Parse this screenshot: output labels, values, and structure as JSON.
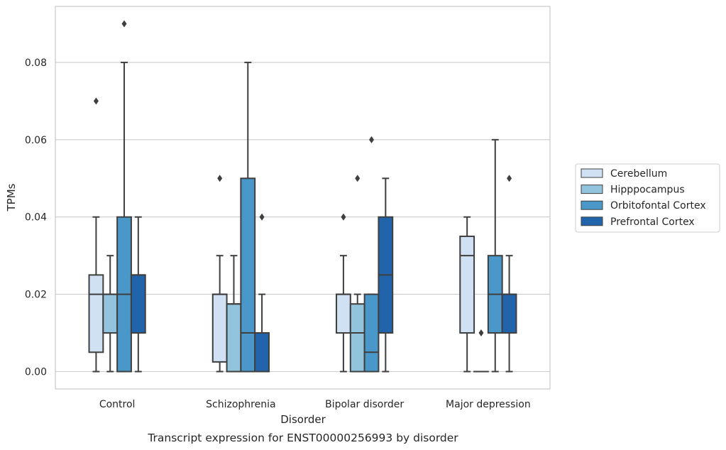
{
  "caption": "Transcript expression for ENST00000256993 by disorder",
  "chart_data": {
    "type": "box",
    "xlabel": "Disorder",
    "ylabel": "TPMs",
    "ylim": [
      -0.0045,
      0.0945
    ],
    "yticks": [
      0.0,
      0.02,
      0.04,
      0.06,
      0.08
    ],
    "ytick_labels": [
      "0.00",
      "0.02",
      "0.04",
      "0.06",
      "0.08"
    ],
    "grid": "horizontal",
    "legend_position": "right",
    "categories": [
      "Control",
      "Schizophrenia",
      "Bipolar disorder",
      "Major depression"
    ],
    "series": [
      {
        "name": "Cerebellum",
        "color": "#cfe1f2",
        "boxes": [
          {
            "whislo": 0.0,
            "q1": 0.005,
            "med": 0.02,
            "q3": 0.025,
            "whishi": 0.04,
            "fliers": [
              0.07
            ]
          },
          {
            "whislo": 0.0,
            "q1": 0.0025,
            "med": 0.02,
            "q3": 0.02,
            "whishi": 0.03,
            "fliers": [
              0.05
            ]
          },
          {
            "whislo": 0.0,
            "q1": 0.01,
            "med": 0.02,
            "q3": 0.02,
            "whishi": 0.03,
            "fliers": [
              0.04
            ]
          },
          {
            "whislo": 0.0,
            "q1": 0.01,
            "med": 0.03,
            "q3": 0.035,
            "whishi": 0.04,
            "fliers": []
          }
        ]
      },
      {
        "name": "Hipppocampus",
        "color": "#93c4de",
        "boxes": [
          {
            "whislo": 0.0,
            "q1": 0.01,
            "med": 0.02,
            "q3": 0.02,
            "whishi": 0.03,
            "fliers": []
          },
          {
            "whislo": 0.0,
            "q1": 0.0,
            "med": 0.0175,
            "q3": 0.0175,
            "whishi": 0.03,
            "fliers": []
          },
          {
            "whislo": 0.0,
            "q1": 0.0,
            "med": 0.01,
            "q3": 0.0175,
            "whishi": 0.02,
            "fliers": [
              0.05
            ]
          },
          {
            "whislo": 0.0,
            "q1": 0.0,
            "med": 0.0,
            "q3": 0.0,
            "whishi": 0.0,
            "fliers": [
              0.01
            ]
          }
        ]
      },
      {
        "name": "Orbitofontal Cortex",
        "color": "#4a98c9",
        "boxes": [
          {
            "whislo": 0.0,
            "q1": 0.0,
            "med": 0.02,
            "q3": 0.04,
            "whishi": 0.08,
            "fliers": [
              0.09
            ]
          },
          {
            "whislo": 0.0,
            "q1": 0.0,
            "med": 0.01,
            "q3": 0.05,
            "whishi": 0.08,
            "fliers": []
          },
          {
            "whislo": 0.0,
            "q1": 0.0,
            "med": 0.005,
            "q3": 0.02,
            "whishi": 0.02,
            "fliers": [
              0.06
            ]
          },
          {
            "whislo": 0.0,
            "q1": 0.01,
            "med": 0.02,
            "q3": 0.03,
            "whishi": 0.06,
            "fliers": []
          }
        ]
      },
      {
        "name": "Prefrontal Cortex",
        "color": "#2164ab",
        "boxes": [
          {
            "whislo": 0.0,
            "q1": 0.01,
            "med": 0.025,
            "q3": 0.025,
            "whishi": 0.04,
            "fliers": []
          },
          {
            "whislo": 0.0,
            "q1": 0.0,
            "med": 0.01,
            "q3": 0.01,
            "whishi": 0.02,
            "fliers": [
              0.04
            ]
          },
          {
            "whislo": 0.0,
            "q1": 0.01,
            "med": 0.025,
            "q3": 0.04,
            "whishi": 0.05,
            "fliers": []
          },
          {
            "whislo": 0.0,
            "q1": 0.01,
            "med": 0.02,
            "q3": 0.02,
            "whishi": 0.03,
            "fliers": [
              0.05
            ]
          }
        ]
      }
    ]
  }
}
